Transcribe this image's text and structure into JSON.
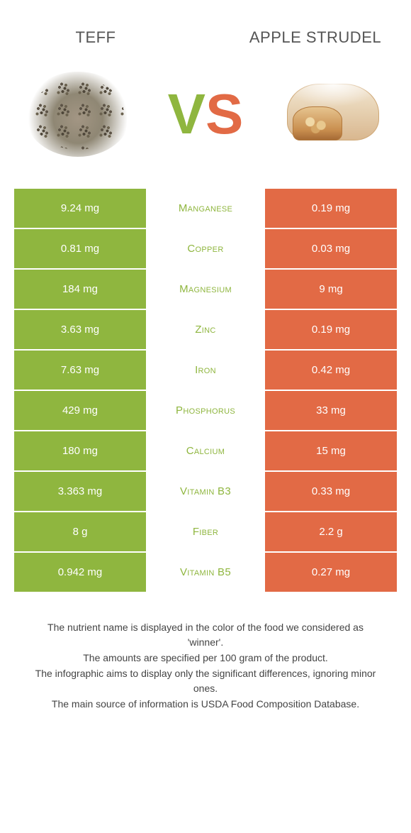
{
  "header": {
    "left_food": "Teff",
    "right_food": "Apple strudel",
    "vs_v": "V",
    "vs_s": "S"
  },
  "colors": {
    "green": "#8fb63f",
    "orange": "#e26a45",
    "row_gap_color": "#ffffff",
    "text_mid_green": "#8fb63f",
    "text_mid_orange": "#e26a45",
    "cell_text": "#ffffff"
  },
  "table": {
    "rows": [
      {
        "left": "9.24 mg",
        "nutrient": "Manganese",
        "right": "0.19 mg",
        "winner": "green"
      },
      {
        "left": "0.81 mg",
        "nutrient": "Copper",
        "right": "0.03 mg",
        "winner": "green"
      },
      {
        "left": "184 mg",
        "nutrient": "Magnesium",
        "right": "9 mg",
        "winner": "green"
      },
      {
        "left": "3.63 mg",
        "nutrient": "Zinc",
        "right": "0.19 mg",
        "winner": "green"
      },
      {
        "left": "7.63 mg",
        "nutrient": "Iron",
        "right": "0.42 mg",
        "winner": "green"
      },
      {
        "left": "429 mg",
        "nutrient": "Phosphorus",
        "right": "33 mg",
        "winner": "green"
      },
      {
        "left": "180 mg",
        "nutrient": "Calcium",
        "right": "15 mg",
        "winner": "green"
      },
      {
        "left": "3.363 mg",
        "nutrient": "Vitamin B3",
        "right": "0.33 mg",
        "winner": "green"
      },
      {
        "left": "8 g",
        "nutrient": "Fiber",
        "right": "2.2 g",
        "winner": "green"
      },
      {
        "left": "0.942 mg",
        "nutrient": "Vitamin B5",
        "right": "0.27 mg",
        "winner": "green"
      }
    ]
  },
  "footnotes": {
    "l1": "The nutrient name is displayed in the color of the food we considered as 'winner'.",
    "l2": "The amounts are specified per 100 gram of the product.",
    "l3": "The infographic aims to display only the significant differences, ignoring minor ones.",
    "l4": "The main source of information is USDA Food Composition Database."
  }
}
